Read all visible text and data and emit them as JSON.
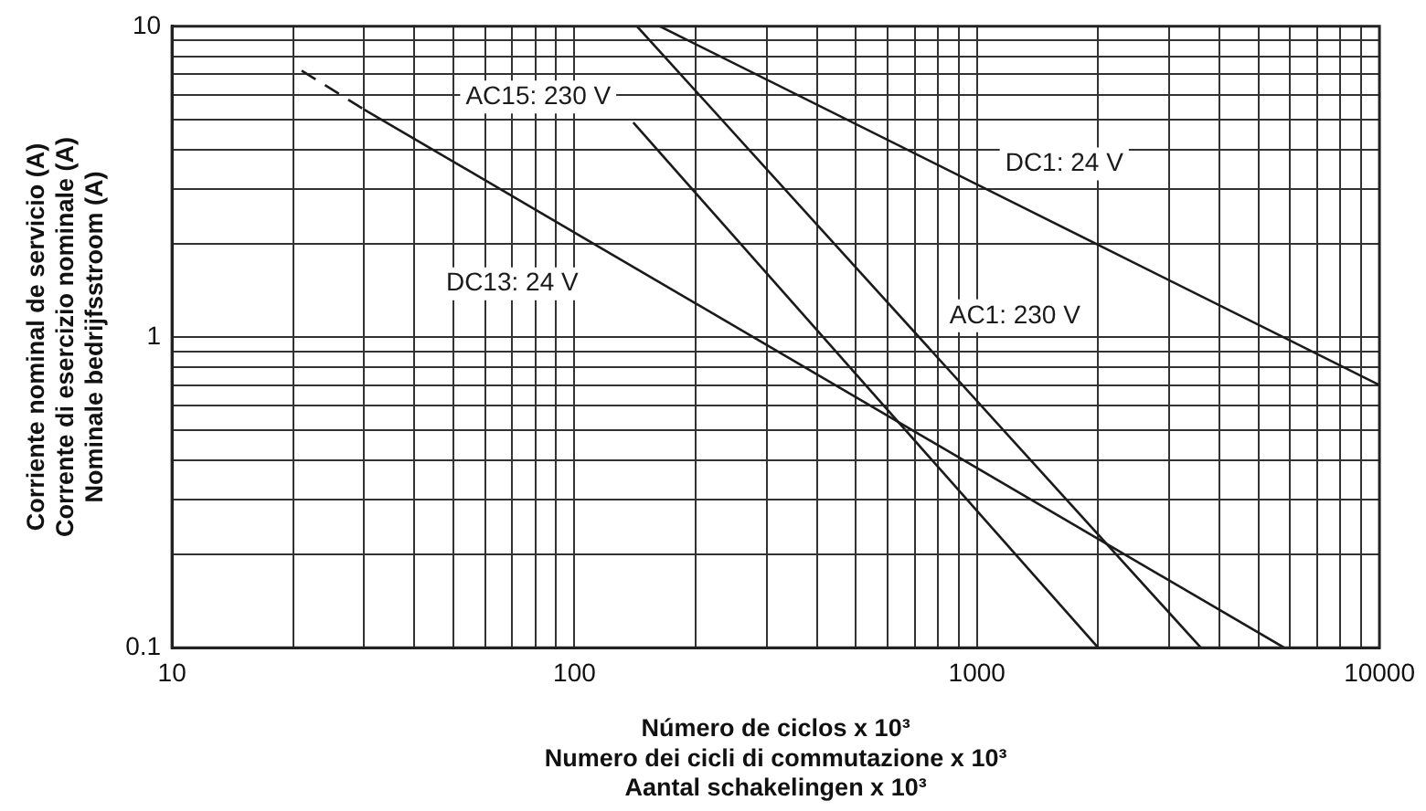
{
  "chart_data": {
    "type": "line",
    "xlabel": "Número de ciclos x 10³\nNumero dei cicli di commutazione x 10³\nAantal schakelingen x 10³",
    "ylabel": "Corriente nominal de servicio (A)\nCorrente di esercizio nominale (A)\nNominale bedrijfsstroom (A)",
    "log": "xy",
    "xlim": [
      10,
      10000
    ],
    "ylim": [
      0.1,
      10
    ],
    "xticks": [
      10,
      {
        "value": 20,
        "label": null
      },
      {
        "value": 30,
        "label": null
      },
      {
        "value": 40,
        "label": null
      },
      {
        "value": 50,
        "label": null
      },
      {
        "value": 60,
        "label": null
      },
      {
        "value": 70,
        "label": null
      },
      {
        "value": 80,
        "label": null
      },
      {
        "value": 90,
        "label": null
      },
      100,
      {
        "value": 200,
        "label": null
      },
      {
        "value": 300,
        "label": null
      },
      {
        "value": 400,
        "label": null
      },
      {
        "value": 500,
        "label": null
      },
      {
        "value": 600,
        "label": null
      },
      {
        "value": 700,
        "label": null
      },
      {
        "value": 800,
        "label": null
      },
      {
        "value": 900,
        "label": null
      },
      1000,
      {
        "value": 2000,
        "label": null
      },
      {
        "value": 3000,
        "label": null
      },
      {
        "value": 4000,
        "label": null
      },
      {
        "value": 5000,
        "label": null
      },
      {
        "value": 6000,
        "label": null
      },
      {
        "value": 7000,
        "label": null
      },
      {
        "value": 8000,
        "label": null
      },
      {
        "value": 9000,
        "label": null
      },
      10000
    ],
    "yticks": [
      0.1,
      {
        "value": 0.2,
        "label": null
      },
      {
        "value": 0.3,
        "label": null
      },
      {
        "value": 0.4,
        "label": null
      },
      {
        "value": 0.5,
        "label": null
      },
      {
        "value": 0.6,
        "label": null
      },
      {
        "value": 0.7,
        "label": null
      },
      {
        "value": 0.8,
        "label": null
      },
      {
        "value": 0.9,
        "label": null
      },
      1,
      {
        "value": 2,
        "label": null
      },
      {
        "value": 3,
        "label": null
      },
      {
        "value": 4,
        "label": null
      },
      {
        "value": 5,
        "label": null
      },
      {
        "value": 6,
        "label": null
      },
      {
        "value": 7,
        "label": null
      },
      {
        "value": 8,
        "label": null
      },
      {
        "value": 9,
        "label": null
      },
      10
    ],
    "grid": true,
    "legend": false,
    "marker": "none",
    "series": [
      {
        "name": "DC1: 24 V",
        "color": "#1a1a1a",
        "x": [
          163,
          10000
        ],
        "values": [
          10,
          0.7
        ],
        "line_style": "solid"
      },
      {
        "name": "AC1: 230 V",
        "color": "#1a1a1a",
        "x": [
          143,
          3600
        ],
        "values": [
          10,
          0.1
        ],
        "line_style": "solid"
      },
      {
        "name": "AC15: 230 V",
        "color": "#1a1a1a",
        "x": [
          140,
          2000
        ],
        "values": [
          4.9,
          0.1
        ],
        "line_style": "solid"
      },
      {
        "name": "DC13: 24 V",
        "color": "#1a1a1a",
        "x": [
          30,
          5800
        ],
        "values": [
          5.4,
          0.1
        ],
        "line_style": "solid"
      },
      {
        "color": "#1a1a1a",
        "x": [
          21,
          30
        ],
        "values": [
          7.2,
          5.4
        ],
        "line_style": "dashed"
      }
    ]
  }
}
